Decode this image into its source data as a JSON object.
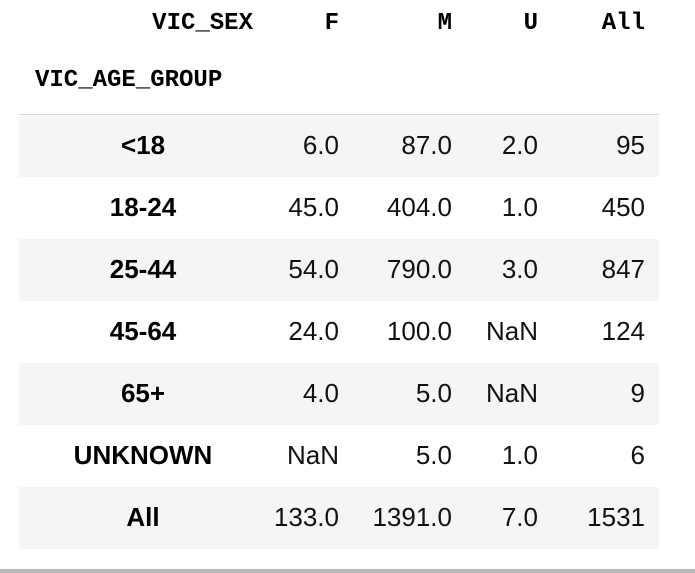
{
  "table": {
    "columns_name": "VIC_SEX",
    "index_name": "VIC_AGE_GROUP",
    "columns": [
      "F",
      "M",
      "U",
      "All"
    ],
    "rows": [
      {
        "label": "<18",
        "values": [
          "6.0",
          "87.0",
          "2.0",
          "95"
        ]
      },
      {
        "label": "18-24",
        "values": [
          "45.0",
          "404.0",
          "1.0",
          "450"
        ]
      },
      {
        "label": "25-44",
        "values": [
          "54.0",
          "790.0",
          "3.0",
          "847"
        ]
      },
      {
        "label": "45-64",
        "values": [
          "24.0",
          "100.0",
          "NaN",
          "124"
        ]
      },
      {
        "label": "65+",
        "values": [
          "4.0",
          "5.0",
          "NaN",
          "9"
        ]
      },
      {
        "label": "UNKNOWN",
        "values": [
          "NaN",
          "5.0",
          "1.0",
          "6"
        ]
      },
      {
        "label": "All",
        "values": [
          "133.0",
          "1391.0",
          "7.0",
          "1531"
        ]
      }
    ]
  },
  "colors": {
    "stripe": "#f5f5f5",
    "rule": "#d9d9d9",
    "bottom_bar": "#b9b9b9"
  }
}
